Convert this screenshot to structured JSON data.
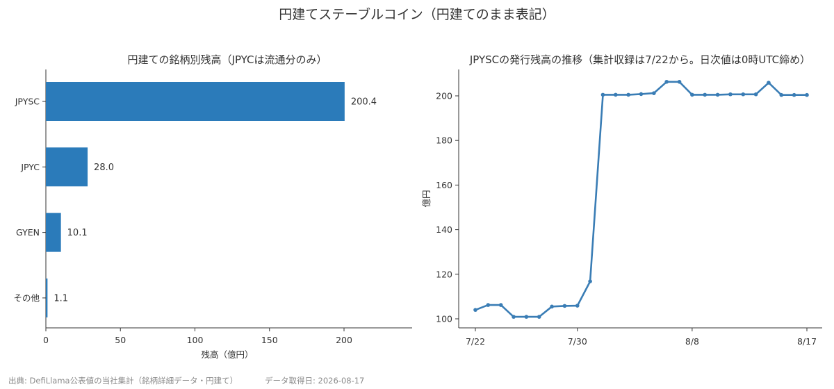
{
  "suptitle": "円建てステーブルコイン（円建てのまま表記）",
  "footer": {
    "source": "出典: DefiLlama公表値の当社集計（銘柄詳細データ・円建て）",
    "retrieved": "データ取得日: 2026-08-17"
  },
  "colors": {
    "bar": "#2b7bba",
    "line": "#3a7db5",
    "axis": "#333333"
  },
  "chart_data": [
    {
      "type": "bar",
      "orientation": "horizontal",
      "title": "円建ての銘柄別残高（JPYCは流通分のみ）",
      "xlabel": "残高（億円）",
      "ylabel": "",
      "categories": [
        "JPYSC",
        "JPYC",
        "GYEN",
        "その他"
      ],
      "values": [
        200.4,
        28.0,
        10.1,
        1.1
      ],
      "value_labels": [
        "200.4",
        "28.0",
        "10.1",
        "1.1"
      ],
      "xlim": [
        0,
        245
      ],
      "xticks": [
        0,
        50,
        100,
        150,
        200
      ],
      "xtick_labels": [
        "0",
        "50",
        "100",
        "150",
        "200"
      ],
      "grid": false
    },
    {
      "type": "line",
      "title": "JPYSCの発行残高の推移（集計収録は7/22から。日次値は0時UTC締め）",
      "xlabel": "",
      "ylabel": "億円",
      "x": [
        "7/22",
        "7/23",
        "7/24",
        "7/25",
        "7/26",
        "7/27",
        "7/28",
        "7/29",
        "7/30",
        "7/31",
        "8/1",
        "8/2",
        "8/3",
        "8/4",
        "8/5",
        "8/6",
        "8/7",
        "8/8",
        "8/9",
        "8/10",
        "8/11",
        "8/12",
        "8/13",
        "8/14",
        "8/15",
        "8/16",
        "8/17"
      ],
      "y": [
        104.0,
        106.2,
        106.2,
        100.9,
        100.9,
        100.9,
        105.5,
        105.8,
        105.9,
        116.8,
        200.5,
        200.5,
        200.5,
        200.8,
        201.2,
        206.3,
        206.3,
        200.5,
        200.5,
        200.5,
        200.7,
        200.7,
        200.7,
        205.9,
        200.4,
        200.4,
        200.4
      ],
      "ylim": [
        96,
        210
      ],
      "yticks": [
        100,
        120,
        140,
        160,
        180,
        200
      ],
      "ytick_labels": [
        "100",
        "120",
        "140",
        "160",
        "180",
        "200"
      ],
      "xtick_labels": [
        "7/22",
        "7/30",
        "8/8",
        "8/17"
      ],
      "xtick_index": [
        0,
        8,
        17,
        26
      ],
      "grid": false
    }
  ]
}
